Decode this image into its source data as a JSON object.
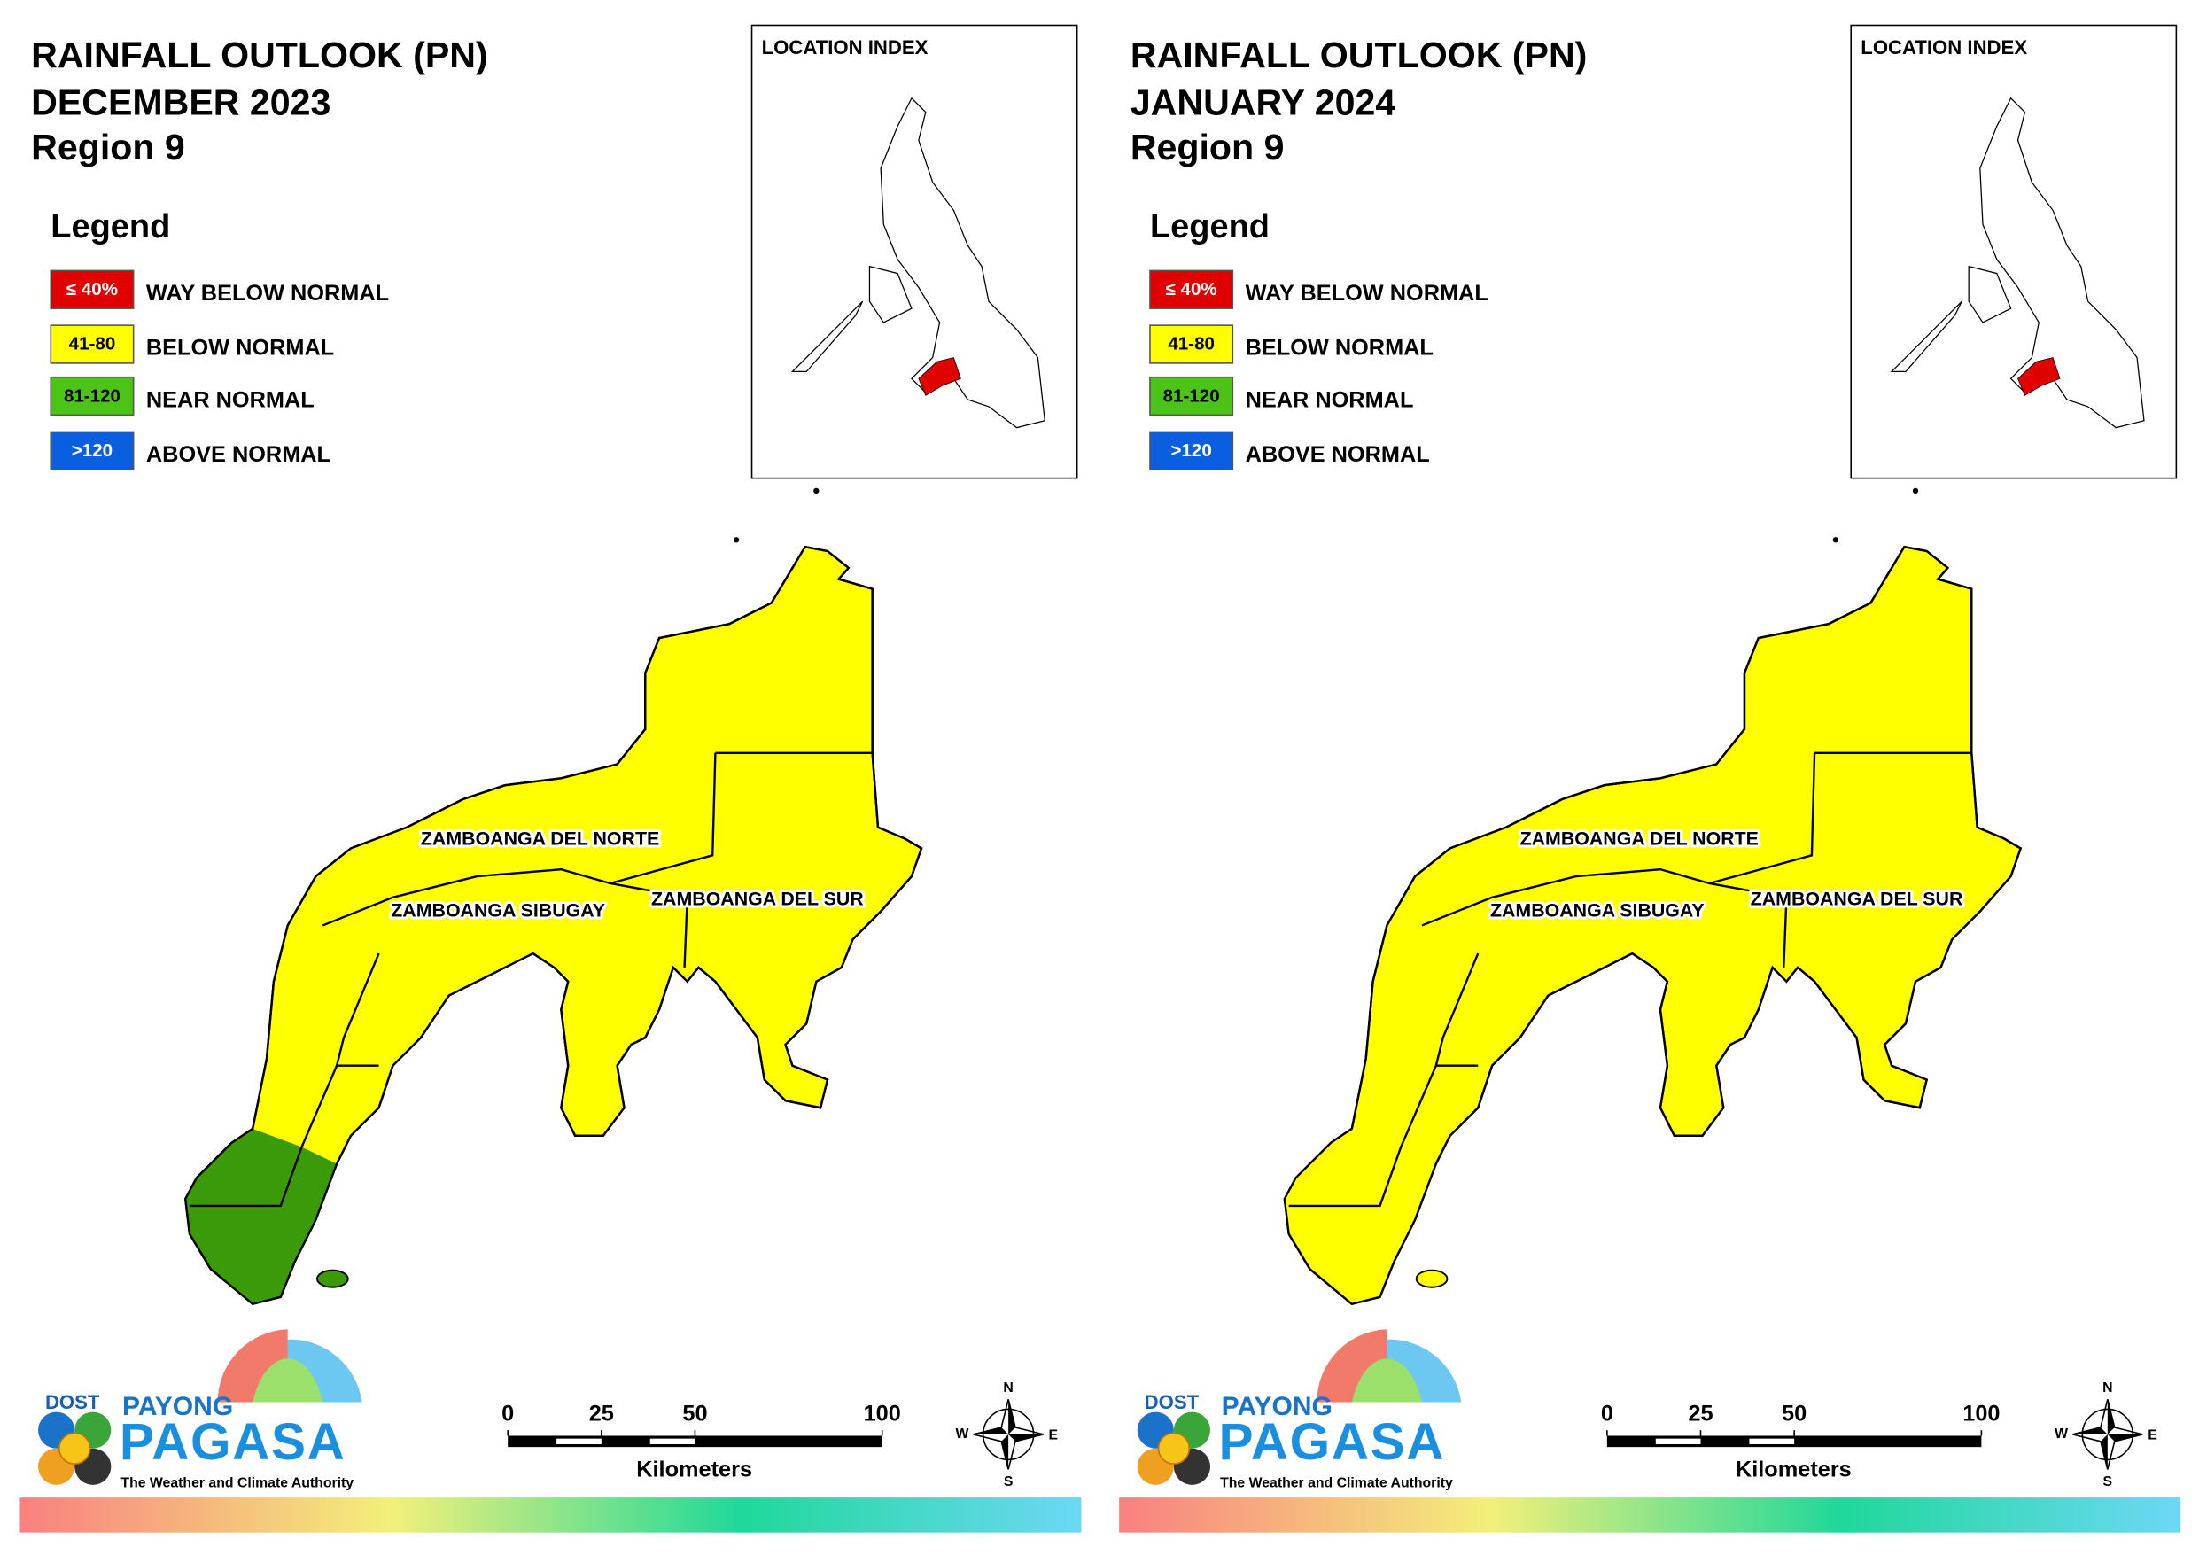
{
  "panels": [
    {
      "title": [
        "RAINFALL OUTLOOK (PN)",
        "DECEMBER 2023",
        "Region 9"
      ],
      "location_index": "LOCATION INDEX",
      "legend": {
        "title": "Legend",
        "items": [
          {
            "range": "≤ 40%",
            "label": "WAY BELOW NORMAL",
            "color": "#e00000",
            "text_color": "#ffffff"
          },
          {
            "range": "41-80",
            "label": "BELOW NORMAL",
            "color": "#ffff00",
            "text_color": "#000000"
          },
          {
            "range": "81-120",
            "label": "NEAR NORMAL",
            "color": "#4cc417",
            "text_color": "#000000"
          },
          {
            "range": ">120",
            "label": "ABOVE NORMAL",
            "color": "#0a5fe0",
            "text_color": "#ffffff"
          }
        ]
      },
      "map": {
        "fill": "#ffff00",
        "southwest_fill": "#3a9a0a",
        "provinces": [
          "ZAMBOANGA DEL NORTE",
          "ZAMBOANGA SIBUGAY",
          "ZAMBOANGA DEL SUR"
        ]
      },
      "scale": {
        "ticks": [
          0,
          25,
          50,
          100
        ],
        "unit": "Kilometers"
      },
      "compass": [
        "N",
        "E",
        "S",
        "W"
      ],
      "logo": {
        "agency": "DOST",
        "brand": "PAYONG",
        "name": "PAGASA",
        "tagline": "The Weather and Climate Authority"
      }
    },
    {
      "title": [
        "RAINFALL OUTLOOK (PN)",
        "JANUARY 2024",
        "Region 9"
      ],
      "location_index": "LOCATION INDEX",
      "legend": {
        "title": "Legend",
        "items": [
          {
            "range": "≤ 40%",
            "label": "WAY BELOW NORMAL",
            "color": "#e00000",
            "text_color": "#ffffff"
          },
          {
            "range": "41-80",
            "label": "BELOW NORMAL",
            "color": "#ffff00",
            "text_color": "#000000"
          },
          {
            "range": "81-120",
            "label": "NEAR NORMAL",
            "color": "#4cc417",
            "text_color": "#000000"
          },
          {
            "range": ">120",
            "label": "ABOVE NORMAL",
            "color": "#0a5fe0",
            "text_color": "#ffffff"
          }
        ]
      },
      "map": {
        "fill": "#ffff00",
        "southwest_fill": "#ffff00",
        "provinces": [
          "ZAMBOANGA DEL NORTE",
          "ZAMBOANGA SIBUGAY",
          "ZAMBOANGA DEL SUR"
        ]
      },
      "scale": {
        "ticks": [
          0,
          25,
          50,
          100
        ],
        "unit": "Kilometers"
      },
      "compass": [
        "N",
        "E",
        "S",
        "W"
      ],
      "logo": {
        "agency": "DOST",
        "brand": "PAYONG",
        "name": "PAGASA",
        "tagline": "The Weather and Climate Authority"
      }
    }
  ]
}
